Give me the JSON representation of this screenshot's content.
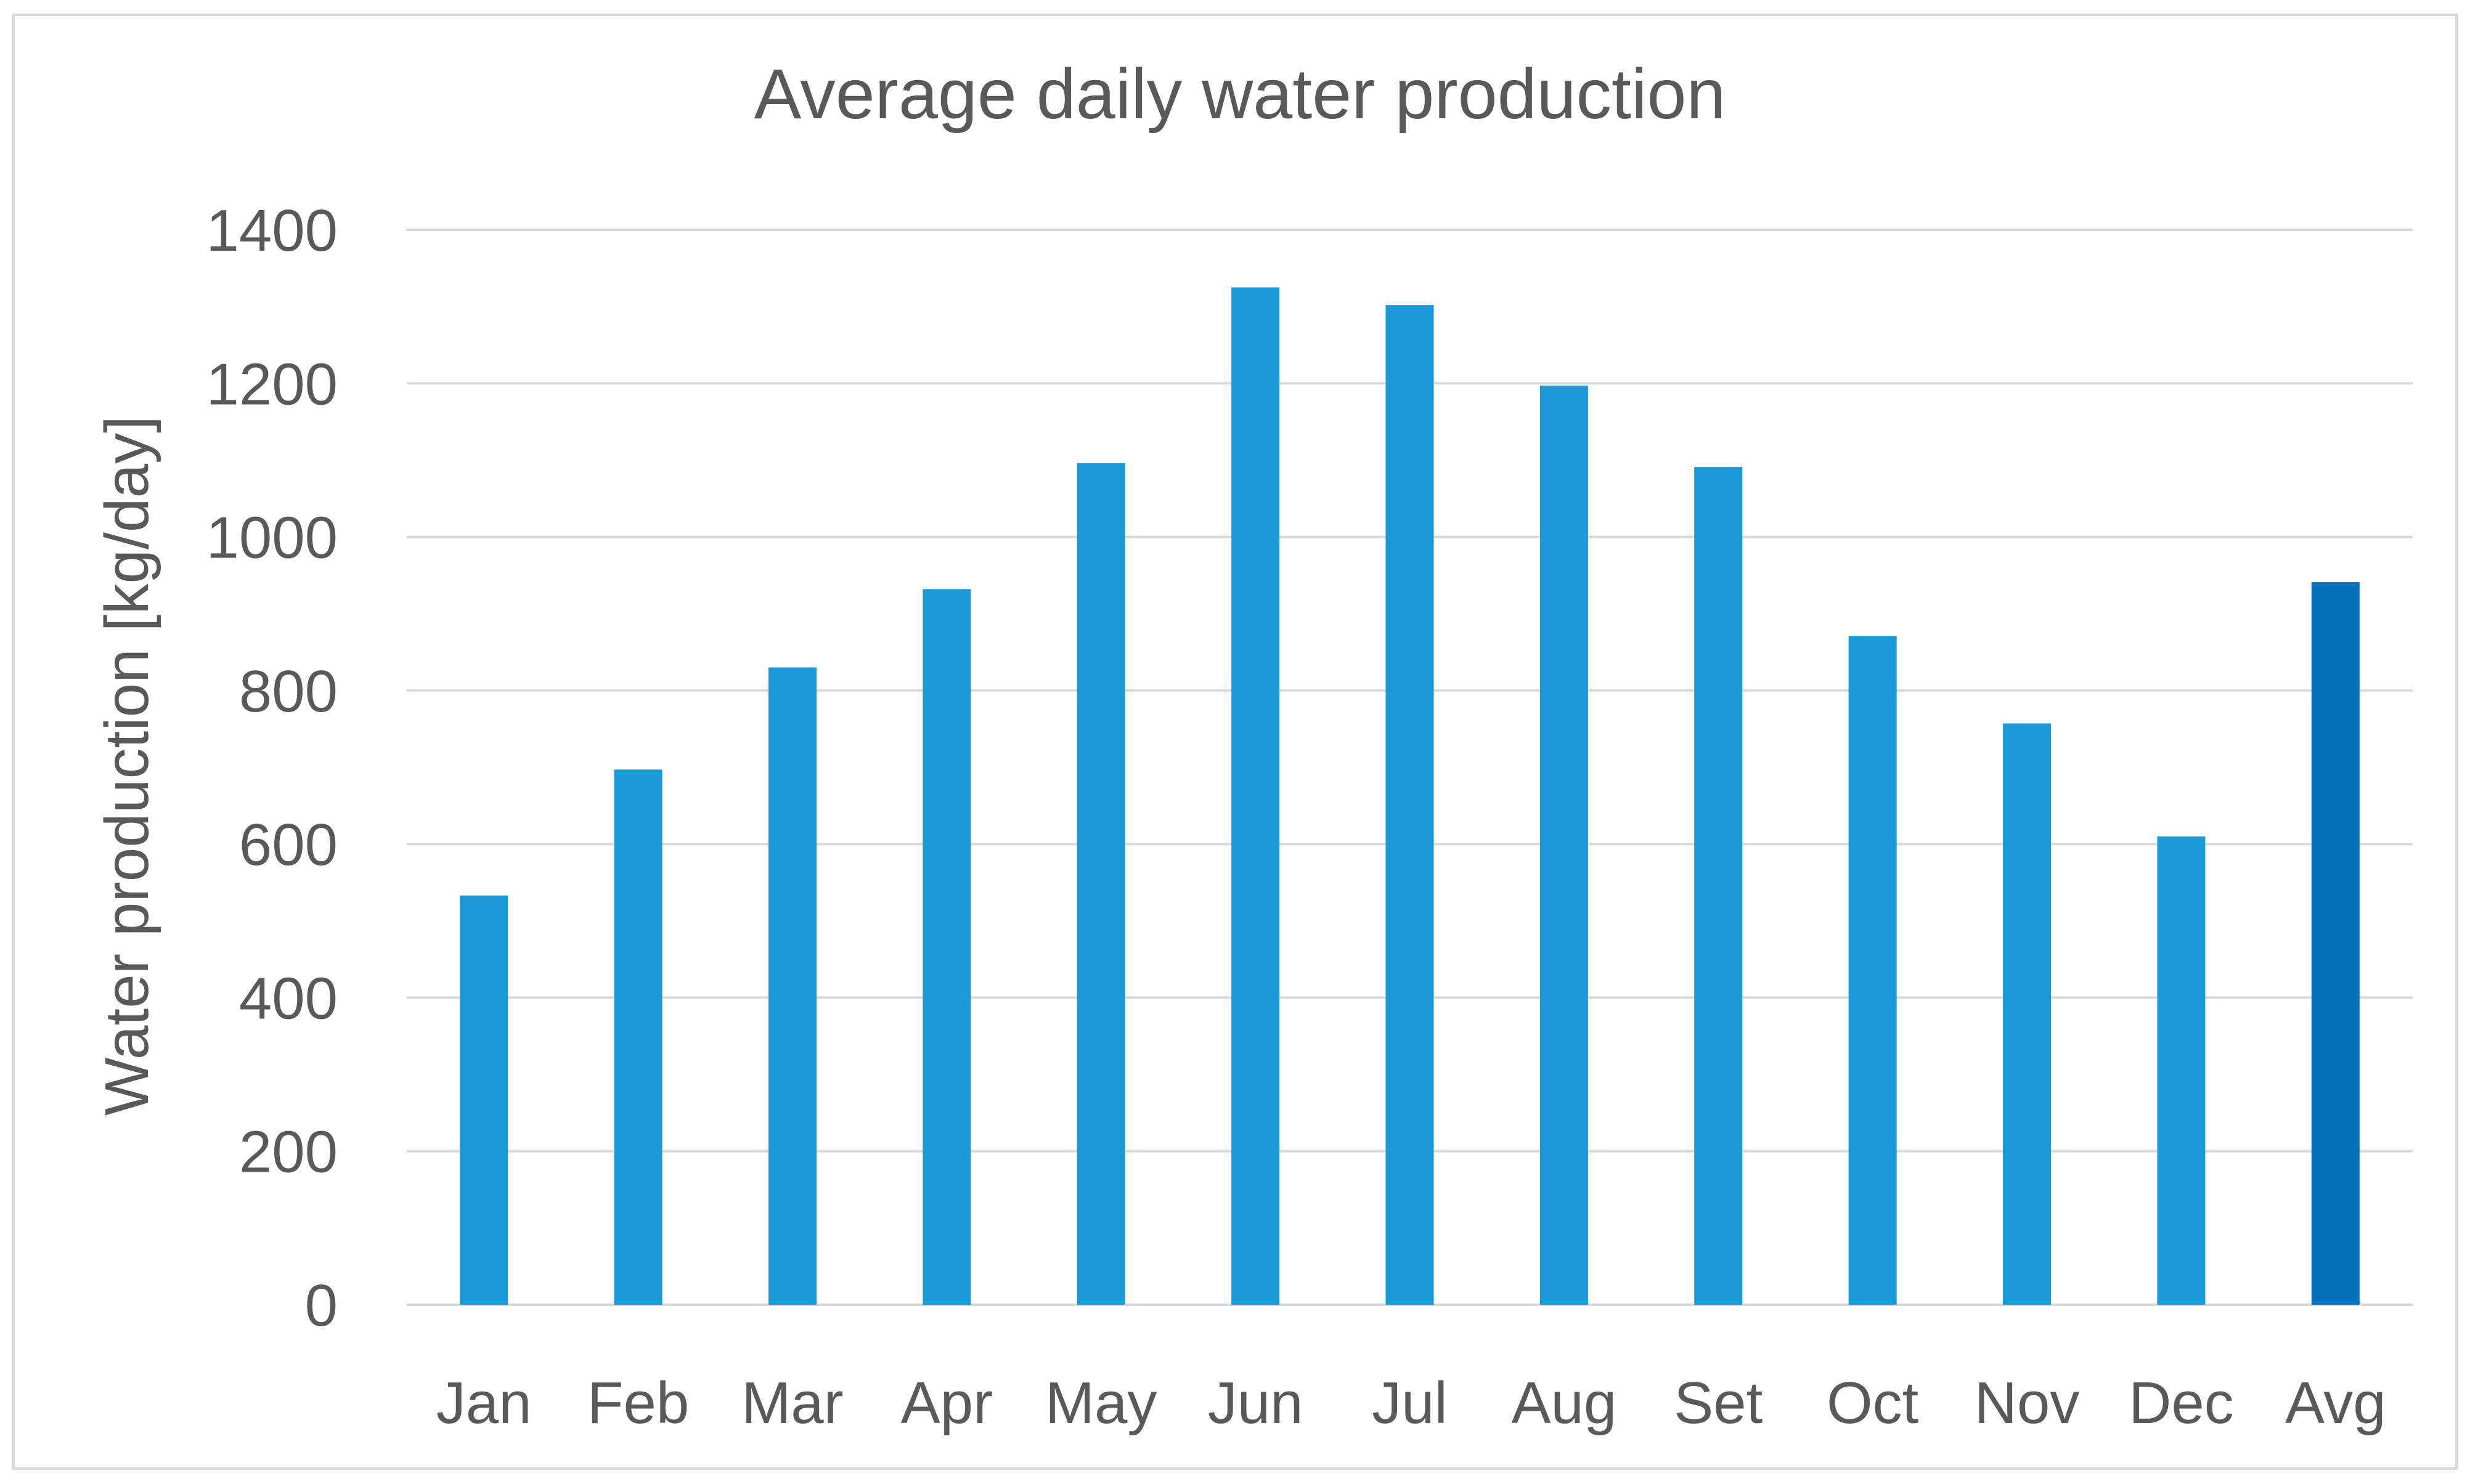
{
  "chart_data": {
    "type": "bar",
    "title": "Average daily water production",
    "xlabel": "",
    "ylabel": "Water production [kg/day]",
    "categories": [
      "Jan",
      "Feb",
      "Mar",
      "Apr",
      "May",
      "Jun",
      "Jul",
      "Aug",
      "Set",
      "Oct",
      "Nov",
      "Dec",
      "Avg"
    ],
    "values": [
      533,
      697,
      830,
      932,
      1096,
      1325,
      1302,
      1197,
      1091,
      871,
      757,
      610,
      941
    ],
    "highlight_category": "Avg",
    "ylim": [
      0,
      1400
    ],
    "yticks": [
      0,
      200,
      400,
      600,
      800,
      1000,
      1200,
      1400
    ],
    "grid": true,
    "legend": "none",
    "colors": {
      "bar": "#1a9ad7",
      "highlight_bar": "#0070b8",
      "text": "#595959",
      "grid": "#d9d9d9"
    }
  }
}
